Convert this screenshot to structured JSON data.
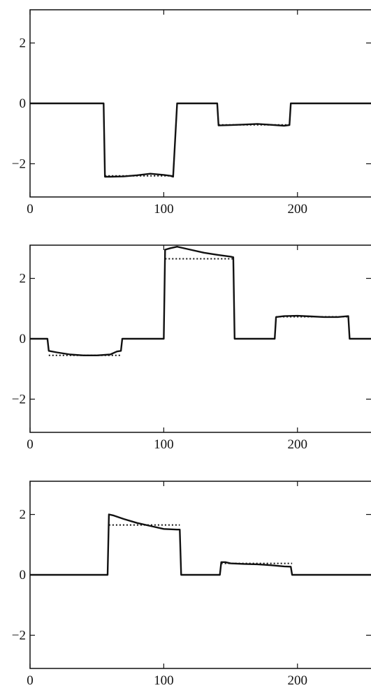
{
  "chart_data": [
    {
      "type": "line",
      "xlim": [
        0,
        255
      ],
      "ylim": [
        -3.1,
        3.1
      ],
      "xticks": [
        0,
        100,
        200
      ],
      "yticks": [
        2,
        0,
        -2
      ],
      "xtick_labels": [
        "0",
        "100",
        "200"
      ],
      "ytick_labels": [
        "2",
        "0",
        "−2"
      ],
      "grid": false,
      "series": [
        {
          "style": "solid",
          "x": [
            0,
            55,
            56,
            60,
            70,
            80,
            90,
            100,
            105,
            107,
            110,
            111,
            140,
            141,
            150,
            160,
            170,
            180,
            190,
            194,
            195,
            255
          ],
          "y": [
            0,
            0,
            -2.43,
            -2.43,
            -2.42,
            -2.38,
            -2.33,
            -2.37,
            -2.4,
            -2.43,
            0,
            0,
            0,
            -0.73,
            -0.72,
            -0.7,
            -0.68,
            -0.71,
            -0.74,
            -0.72,
            0,
            0
          ]
        },
        {
          "style": "dotted",
          "x": [
            56,
            108,
            141,
            194
          ],
          "y": [
            -2.4,
            -2.4,
            -0.71,
            -0.71
          ],
          "segments": [
            [
              0,
              1
            ],
            [
              2,
              3
            ]
          ]
        }
      ]
    },
    {
      "type": "line",
      "xlim": [
        0,
        255
      ],
      "ylim": [
        -3.1,
        3.1
      ],
      "xticks": [
        0,
        100,
        200
      ],
      "yticks": [
        2,
        0,
        -2
      ],
      "xtick_labels": [
        "0",
        "100",
        "200"
      ],
      "ytick_labels": [
        "2",
        "0",
        "−2"
      ],
      "grid": false,
      "series": [
        {
          "style": "solid",
          "x": [
            0,
            13,
            14,
            20,
            30,
            40,
            50,
            60,
            65,
            68,
            69,
            100,
            101,
            105,
            110,
            120,
            130,
            140,
            150,
            152,
            153,
            183,
            184,
            190,
            200,
            210,
            220,
            230,
            238,
            239,
            255
          ],
          "y": [
            0,
            0,
            -0.4,
            -0.45,
            -0.52,
            -0.55,
            -0.55,
            -0.52,
            -0.42,
            -0.4,
            0,
            0,
            2.95,
            3.0,
            3.05,
            2.95,
            2.85,
            2.78,
            2.72,
            2.7,
            0,
            0,
            0.72,
            0.75,
            0.76,
            0.74,
            0.72,
            0.72,
            0.75,
            0,
            0
          ]
        },
        {
          "style": "dotted",
          "x": [
            14,
            68,
            101,
            152,
            184,
            238
          ],
          "y": [
            -0.55,
            -0.55,
            2.65,
            2.65,
            0.73,
            0.73
          ],
          "segments": [
            [
              0,
              1
            ],
            [
              2,
              3
            ],
            [
              4,
              5
            ]
          ]
        }
      ]
    },
    {
      "type": "line",
      "xlim": [
        0,
        255
      ],
      "ylim": [
        -3.1,
        3.1
      ],
      "xticks": [
        0,
        100,
        200
      ],
      "yticks": [
        2,
        0,
        -2
      ],
      "xtick_labels": [
        "0",
        "100",
        "200"
      ],
      "ytick_labels": [
        "2",
        "0",
        "−2"
      ],
      "grid": false,
      "series": [
        {
          "style": "solid",
          "x": [
            0,
            58,
            59,
            62,
            70,
            80,
            90,
            100,
            110,
            112,
            113,
            142,
            143,
            146,
            150,
            160,
            170,
            180,
            190,
            195,
            196,
            255
          ],
          "y": [
            0,
            0,
            2.0,
            1.97,
            1.85,
            1.72,
            1.62,
            1.52,
            1.5,
            1.5,
            0,
            0,
            0.42,
            0.42,
            0.38,
            0.36,
            0.35,
            0.32,
            0.28,
            0.27,
            0,
            0
          ]
        },
        {
          "style": "dotted",
          "x": [
            59,
            112,
            143,
            196
          ],
          "y": [
            1.65,
            1.65,
            0.38,
            0.38
          ],
          "segments": [
            [
              0,
              1
            ],
            [
              2,
              3
            ]
          ]
        }
      ]
    }
  ]
}
